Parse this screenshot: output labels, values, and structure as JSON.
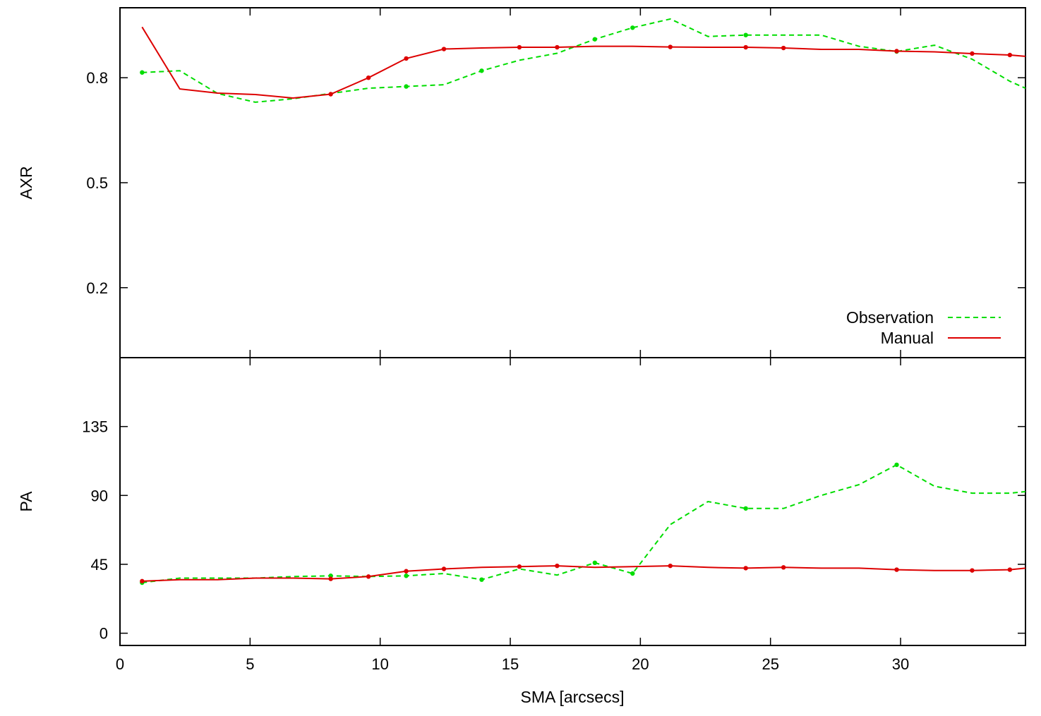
{
  "chart_data": [
    {
      "type": "line",
      "ylabel": "AXR",
      "xlabel": "",
      "xlim": [
        0,
        34.8
      ],
      "ylim": [
        0,
        1
      ],
      "yticks": [
        0.2,
        0.5,
        0.8
      ],
      "ytick_labels": [
        "0.2",
        "0.5",
        "0.8"
      ],
      "grid": false,
      "legend_position": "bottom-right",
      "series": [
        {
          "name": "Observation",
          "color": "#00dd00",
          "dash": "dashed",
          "x": [
            0.85,
            2.3,
            3.75,
            5.2,
            6.65,
            8.1,
            9.55,
            11.0,
            12.45,
            13.9,
            15.35,
            16.8,
            18.25,
            19.7,
            21.15,
            22.6,
            24.05,
            25.5,
            26.95,
            28.4,
            29.85,
            31.3,
            32.75,
            34.2,
            34.8
          ],
          "y": [
            0.815,
            0.82,
            0.755,
            0.73,
            0.74,
            0.755,
            0.77,
            0.775,
            0.78,
            0.82,
            0.85,
            0.87,
            0.91,
            0.943,
            0.968,
            0.918,
            0.922,
            0.922,
            0.922,
            0.89,
            0.875,
            0.893,
            0.853,
            0.79,
            0.77
          ],
          "markers_x": [
            0.85,
            11.0,
            13.9,
            18.25,
            19.7,
            24.05,
            29.85
          ]
        },
        {
          "name": "Manual",
          "color": "#dd0000",
          "dash": "solid",
          "x": [
            0.85,
            2.3,
            3.75,
            5.2,
            6.65,
            8.1,
            9.55,
            11.0,
            12.45,
            13.9,
            15.35,
            16.8,
            18.25,
            19.7,
            21.15,
            22.6,
            24.05,
            25.5,
            26.95,
            28.4,
            29.85,
            31.3,
            32.75,
            34.2,
            34.8
          ],
          "y": [
            0.945,
            0.768,
            0.756,
            0.752,
            0.742,
            0.753,
            0.8,
            0.855,
            0.882,
            0.885,
            0.887,
            0.887,
            0.89,
            0.89,
            0.888,
            0.887,
            0.887,
            0.885,
            0.881,
            0.881,
            0.876,
            0.874,
            0.869,
            0.865,
            0.861
          ],
          "markers_x": [
            8.1,
            9.55,
            11.0,
            12.45,
            15.35,
            16.8,
            21.15,
            24.05,
            25.5,
            29.85,
            32.75,
            34.2
          ]
        }
      ]
    },
    {
      "type": "line",
      "ylabel": "PA",
      "xlabel": "SMA [arcsecs]",
      "xlim": [
        0,
        34.8
      ],
      "ylim": [
        -8,
        180
      ],
      "yticks": [
        0,
        45,
        90,
        135
      ],
      "ytick_labels": [
        "0",
        "45",
        "90",
        "135"
      ],
      "xticks": [
        0,
        5,
        10,
        15,
        20,
        25,
        30
      ],
      "xtick_labels": [
        "0",
        "5",
        "10",
        "15",
        "20",
        "25",
        "30"
      ],
      "grid": false,
      "series": [
        {
          "name": "Observation",
          "color": "#00dd00",
          "dash": "dashed",
          "x": [
            0.85,
            2.3,
            3.75,
            5.2,
            6.65,
            8.1,
            9.55,
            11.0,
            12.45,
            13.9,
            15.35,
            16.8,
            18.25,
            19.7,
            21.15,
            22.6,
            24.05,
            25.5,
            26.95,
            28.4,
            29.85,
            31.3,
            32.75,
            34.2,
            34.8
          ],
          "y": [
            33,
            36,
            36,
            36,
            37,
            37.5,
            37,
            37.5,
            39,
            35,
            42,
            38,
            46,
            39,
            71,
            86,
            81.5,
            81.5,
            90,
            97,
            110,
            96,
            91.5,
            91.5,
            92.5
          ],
          "markers_x": [
            0.85,
            8.1,
            11.0,
            13.9,
            18.25,
            19.7,
            24.05,
            29.85
          ]
        },
        {
          "name": "Manual",
          "color": "#dd0000",
          "dash": "solid",
          "x": [
            0.85,
            2.3,
            3.75,
            5.2,
            6.65,
            8.1,
            9.55,
            11.0,
            12.45,
            13.9,
            15.35,
            16.8,
            18.25,
            19.7,
            21.15,
            22.6,
            24.05,
            25.5,
            26.95,
            28.4,
            29.85,
            31.3,
            32.75,
            34.2,
            34.8
          ],
          "y": [
            34,
            35,
            35,
            36,
            36,
            35.5,
            37,
            40.5,
            42,
            43,
            43.5,
            44,
            43,
            43.5,
            44,
            43,
            42.5,
            43,
            42.5,
            42.5,
            41.5,
            41,
            41,
            41.5,
            42.5
          ],
          "markers_x": [
            0.85,
            8.1,
            9.55,
            11.0,
            12.45,
            15.35,
            16.8,
            21.15,
            24.05,
            25.5,
            29.85,
            32.75,
            34.2
          ]
        }
      ]
    }
  ]
}
